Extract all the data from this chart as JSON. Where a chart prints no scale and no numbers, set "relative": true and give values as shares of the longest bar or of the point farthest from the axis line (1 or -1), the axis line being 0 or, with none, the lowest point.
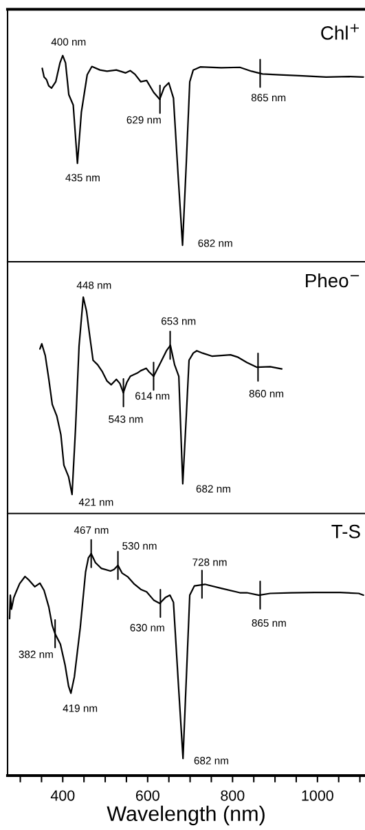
{
  "chart_data": [
    {
      "type": "line",
      "title": "Chl$^{+}$",
      "relative": true,
      "xlim": [
        270,
        1112
      ],
      "tick_labels": false,
      "line_style": "solid",
      "series": [
        {
          "color": "#000000",
          "x": [
            351.7,
            356,
            361.6,
            367,
            373.6,
            383.5,
            393.4,
            400,
            406.6,
            414.3,
            424.7,
            434.6,
            443.9,
            457.6,
            468.6,
            487.8,
            504.3,
            526.3,
            548.2,
            559.2,
            570.2,
            583.9,
            597.6,
            614.1,
            628.4,
            638.8,
            649.8,
            660.8,
            671.7,
            682.2,
            691,
            699.2,
            707.4,
            723.9,
            773.3,
            817.2,
            844.7,
            870.5,
            910.6,
            965.4,
            1020.3,
            1075.2,
            1108.2
          ],
          "values": [
            0.938,
            0.896,
            0.884,
            0.853,
            0.842,
            0.873,
            0.964,
            1,
            0.964,
            0.81,
            0.76,
            0.477,
            0.726,
            0.907,
            0.947,
            0.93,
            0.924,
            0.93,
            0.916,
            0.927,
            0.909,
            0.873,
            0.879,
            0.822,
            0.788,
            0.845,
            0.868,
            0.794,
            0.42,
            0.08,
            0.477,
            0.873,
            0.93,
            0.945,
            0.941,
            0.943,
            0.924,
            0.911,
            0.907,
            0.902,
            0.896,
            0.898,
            0.896
          ]
        }
      ],
      "annotations": [
        {
          "text": "400 nm",
          "x": 400,
          "y": 1
        },
        {
          "text": "435 nm",
          "x": 435,
          "y": 0.477
        },
        {
          "text": "629 nm",
          "x": 629,
          "y": 0.788
        },
        {
          "text": "682 nm",
          "x": 682,
          "y": 0.08
        },
        {
          "text": "865 nm",
          "x": 865,
          "y": 0.914
        }
      ]
    },
    {
      "type": "line",
      "title": "Pheo$^{−}$",
      "relative": true,
      "xlim": [
        270,
        1112
      ],
      "tick_labels": false,
      "line_style": "solid",
      "series": [
        {
          "color": "#000000",
          "x": [
            346.2,
            350.6,
            358.8,
            367,
            375.3,
            386.2,
            395.6,
            402.7,
            413.7,
            421.9,
            430.2,
            438.4,
            448.3,
            456,
            463.1,
            471.4,
            482.3,
            493.3,
            504.3,
            514.2,
            526.3,
            534.5,
            542.7,
            551,
            559.2,
            575.7,
            583.9,
            596.5,
            603.1,
            614.1,
            630.6,
            644.3,
            653.6,
            663.5,
            673.4,
            682.7,
            691,
            697.5,
            707.4,
            715.7,
            729.4,
            751.3,
            795.3,
            811.7,
            833.7,
            856.7,
            888.6,
            916
          ],
          "values": [
            0.76,
            0.784,
            0.73,
            0.623,
            0.504,
            0.449,
            0.364,
            0.223,
            0.17,
            0.088,
            0.396,
            0.773,
            1,
            0.935,
            0.828,
            0.708,
            0.687,
            0.655,
            0.612,
            0.595,
            0.62,
            0.601,
            0.558,
            0.606,
            0.634,
            0.649,
            0.66,
            0.671,
            0.655,
            0.634,
            0.698,
            0.752,
            0.777,
            0.687,
            0.634,
            0.137,
            0.449,
            0.708,
            0.741,
            0.752,
            0.741,
            0.727,
            0.733,
            0.723,
            0.698,
            0.676,
            0.678,
            0.668
          ]
        }
      ],
      "annotations": [
        {
          "text": "448 nm",
          "x": 448,
          "y": 1
        },
        {
          "text": "421 nm",
          "x": 421,
          "y": 0.088
        },
        {
          "text": "543 nm",
          "x": 543,
          "y": 0.558
        },
        {
          "text": "614 nm",
          "x": 614,
          "y": 0.634
        },
        {
          "text": "653 nm",
          "x": 653,
          "y": 0.777
        },
        {
          "text": "682 nm",
          "x": 682,
          "y": 0.137
        },
        {
          "text": "860 nm",
          "x": 860,
          "y": 0.676
        }
      ]
    },
    {
      "type": "line",
      "title": "T-S",
      "relative": true,
      "xlim": [
        270,
        1112
      ],
      "tick_labels": "x",
      "xlabel": "Wavelength (nm)",
      "line_style": "solid",
      "xticks": [
        {
          "value": 300,
          "label": null
        },
        {
          "value": 350,
          "label": null
        },
        400,
        {
          "value": 450,
          "label": null
        },
        {
          "value": 500,
          "label": null
        },
        {
          "value": 550,
          "label": null
        },
        600,
        {
          "value": 650,
          "label": null
        },
        {
          "value": 700,
          "label": null
        },
        {
          "value": 750,
          "label": null
        },
        800,
        {
          "value": 850,
          "label": null
        },
        {
          "value": 900,
          "label": null
        },
        {
          "value": 950,
          "label": null
        },
        1000,
        {
          "value": 1050,
          "label": null
        },
        {
          "value": 1100,
          "label": null
        }
      ],
      "series": [
        {
          "color": "#000000",
          "x": [
            274.8,
            276.5,
            279.2,
            284.7,
            290.2,
            298.4,
            311.1,
            320.4,
            334.1,
            346.2,
            356.1,
            367.1,
            375.3,
            381.9,
            394.5,
            405.5,
            413.7,
            419.2,
            427.4,
            441.2,
            453.8,
            460.4,
            467,
            476.9,
            490.6,
            512.5,
            520.8,
            530.1,
            540,
            553.7,
            567.4,
            583.9,
            597.6,
            614.1,
            628.4,
            641.6,
            652.5,
            660.8,
            671.7,
            683.3,
            691,
            699.2,
            710.2,
            734.9,
            773.3,
            817.2,
            833.7,
            862.2,
            888.6,
            938,
            992.9,
            1053.3,
            1097.2,
            1108.2
          ],
          "values": [
            0.707,
            0.813,
            0.75,
            0.802,
            0.828,
            0.865,
            0.897,
            0.881,
            0.851,
            0.867,
            0.834,
            0.76,
            0.676,
            0.639,
            0.592,
            0.498,
            0.403,
            0.371,
            0.445,
            0.666,
            0.918,
            0.981,
            1,
            0.96,
            0.934,
            0.922,
            0.929,
            0.947,
            0.912,
            0.895,
            0.865,
            0.839,
            0.828,
            0.791,
            0.776,
            0.802,
            0.813,
            0.781,
            0.434,
            0.077,
            0.434,
            0.813,
            0.855,
            0.862,
            0.844,
            0.824,
            0.824,
            0.813,
            0.821,
            0.824,
            0.825,
            0.825,
            0.821,
            0.813
          ]
        }
      ],
      "annotations": [
        {
          "text": "467 nm",
          "x": 467,
          "y": 1
        },
        {
          "text": "530 nm",
          "x": 530,
          "y": 0.947
        },
        {
          "text": "728 nm",
          "x": 728,
          "y": 0.862
        },
        {
          "text": "382 nm",
          "x": 382,
          "y": 0.639
        },
        {
          "text": "419 nm",
          "x": 419,
          "y": 0.371
        },
        {
          "text": "630 nm",
          "x": 630,
          "y": 0.776
        },
        {
          "text": "865 nm",
          "x": 865,
          "y": 0.813
        },
        {
          "text": "682 nm",
          "x": 682,
          "y": 0.077
        }
      ]
    }
  ]
}
